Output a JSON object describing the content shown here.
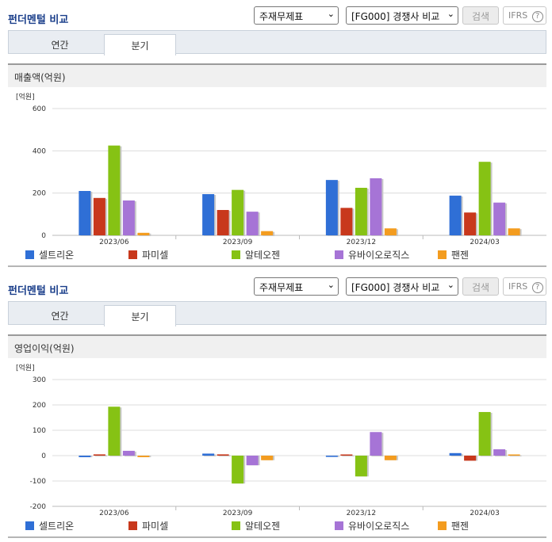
{
  "panels": [
    {
      "title": "펀더멘털 비교",
      "select_statement": "주재무제표",
      "select_compare": "[FG000] 경쟁사 비교",
      "search_label": "검색",
      "ifrs_label": "IFRS",
      "ifrs_help": "?",
      "tabs": [
        {
          "label": "연간"
        },
        {
          "label": "분기"
        }
      ],
      "active_tab": "분기",
      "chart_title": "매출액(억원)",
      "unit": "[억원]"
    },
    {
      "title": "펀더멘털 비교",
      "select_statement": "주재무제표",
      "select_compare": "[FG000] 경쟁사 비교",
      "search_label": "검색",
      "ifrs_label": "IFRS",
      "ifrs_help": "?",
      "tabs": [
        {
          "label": "연간"
        },
        {
          "label": "분기"
        }
      ],
      "active_tab": "분기",
      "chart_title": "영업이익(억원)",
      "unit": "[억원]"
    }
  ],
  "chevron": "⌄",
  "colors": {
    "title": "#1a3e8a",
    "series": [
      "#2f6fd6",
      "#c8381c",
      "#86c214",
      "#a674d6",
      "#f39c1f"
    ]
  },
  "chart_data": [
    {
      "type": "bar",
      "title": "매출액(억원)",
      "unit_label": "[억원]",
      "categories": [
        "2023/06",
        "2023/09",
        "2023/12",
        "2024/03"
      ],
      "ylim": [
        0,
        600
      ],
      "yticks": [
        0,
        200,
        400,
        600
      ],
      "grid": true,
      "legend": "bottom",
      "series": [
        {
          "name": "셀트리온",
          "values": [
            210,
            195,
            262,
            188
          ]
        },
        {
          "name": "파미셀",
          "values": [
            177,
            120,
            130,
            108
          ]
        },
        {
          "name": "알테오젠",
          "values": [
            425,
            215,
            225,
            348
          ]
        },
        {
          "name": "유바이오로직스",
          "values": [
            165,
            112,
            270,
            155
          ]
        },
        {
          "name": "팬젠",
          "values": [
            12,
            20,
            33,
            33
          ]
        }
      ]
    },
    {
      "type": "bar",
      "title": "영업이익(억원)",
      "unit_label": "[억원]",
      "categories": [
        "2023/06",
        "2023/09",
        "2023/12",
        "2024/03"
      ],
      "ylim": [
        -200,
        300
      ],
      "yticks": [
        -200,
        -100,
        0,
        100,
        200,
        300
      ],
      "grid": true,
      "legend": "bottom",
      "series": [
        {
          "name": "셀트리온",
          "values": [
            -6,
            8,
            -5,
            10
          ]
        },
        {
          "name": "파미셀",
          "values": [
            5,
            5,
            0,
            -20
          ]
        },
        {
          "name": "알테오젠",
          "values": [
            193,
            -110,
            -82,
            172
          ]
        },
        {
          "name": "유바이오로직스",
          "values": [
            19,
            -38,
            93,
            25
          ]
        },
        {
          "name": "팬젠",
          "values": [
            -6,
            -18,
            -18,
            0
          ]
        }
      ]
    }
  ]
}
